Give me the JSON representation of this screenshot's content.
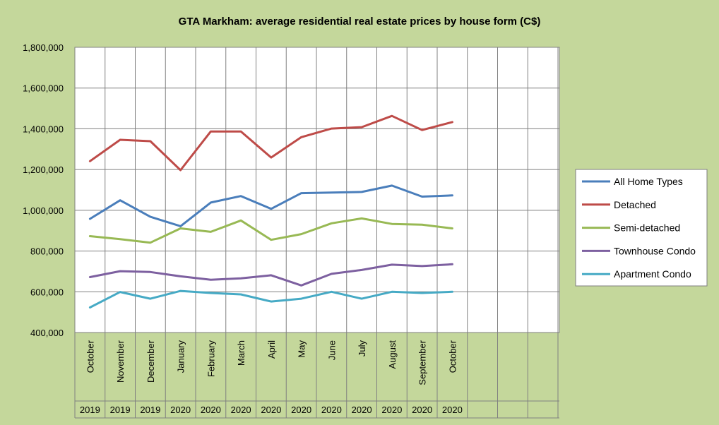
{
  "chart_data": {
    "type": "line",
    "title": "GTA Markham: average residential real estate prices by house form (C$)",
    "xlabel": "",
    "ylabel": "",
    "ylim": [
      400000,
      1800000
    ],
    "y_ticks": [
      "400,000",
      "600,000",
      "800,000",
      "1,000,000",
      "1,200,000",
      "1,400,000",
      "1,600,000",
      "1,800,000"
    ],
    "categories": [
      "October",
      "November",
      "December",
      "January",
      "February",
      "March",
      "April",
      "May",
      "June",
      "July",
      "August",
      "September",
      "October"
    ],
    "years": [
      "2019",
      "2019",
      "2019",
      "2020",
      "2020",
      "2020",
      "2020",
      "2020",
      "2020",
      "2020",
      "2020",
      "2020",
      "2020"
    ],
    "grid": true,
    "legend_position": "right",
    "colors": {
      "page_background": "#c4d79b",
      "plot_background": "#ffffff",
      "gridline": "#808080"
    },
    "series": [
      {
        "name": "All Home Types",
        "color": "#4a7ebb",
        "values": [
          958000,
          1049000,
          968000,
          922000,
          1038000,
          1070000,
          1007000,
          1084000,
          1087000,
          1090000,
          1121000,
          1067000,
          1073000
        ]
      },
      {
        "name": "Detached",
        "color": "#be4b48",
        "values": [
          1241000,
          1346000,
          1339000,
          1197000,
          1387000,
          1387000,
          1259000,
          1359000,
          1401000,
          1408000,
          1463000,
          1394000,
          1433000
        ]
      },
      {
        "name": "Semi-detached",
        "color": "#98b954",
        "values": [
          873000,
          858000,
          841000,
          911000,
          894000,
          950000,
          855000,
          883000,
          936000,
          960000,
          933000,
          929000,
          911000
        ]
      },
      {
        "name": "Townhouse Condo",
        "color": "#7d60a0",
        "values": [
          672000,
          701000,
          697000,
          676000,
          659000,
          666000,
          681000,
          631000,
          688000,
          707000,
          733000,
          726000,
          735000
        ]
      },
      {
        "name": "Apartment Condo",
        "color": "#46aac5",
        "values": [
          523000,
          599000,
          566000,
          604000,
          594000,
          587000,
          552000,
          566000,
          600000,
          566000,
          600000,
          594000,
          600000
        ]
      }
    ]
  }
}
